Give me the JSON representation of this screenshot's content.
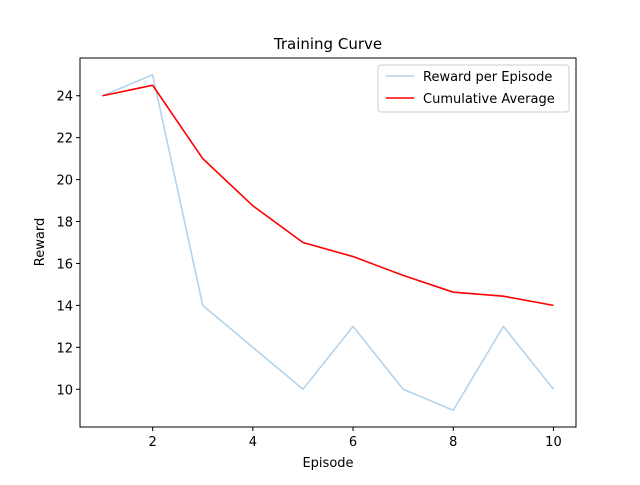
{
  "chart_data": {
    "type": "line",
    "title": "Training Curve",
    "xlabel": "Episode",
    "ylabel": "Reward",
    "xlim": [
      0.55,
      10.45
    ],
    "ylim": [
      8.2,
      25.8
    ],
    "xticks": [
      2,
      4,
      6,
      8,
      10
    ],
    "yticks": [
      10,
      12,
      14,
      16,
      18,
      20,
      22,
      24
    ],
    "grid": false,
    "legend_position": "top-right",
    "x": [
      1,
      2,
      3,
      4,
      5,
      6,
      7,
      8,
      9,
      10
    ],
    "series": [
      {
        "name": "Reward per Episode",
        "color": "#b3d4ea",
        "values": [
          24,
          25,
          14,
          12,
          10,
          13,
          10,
          9,
          13,
          10
        ]
      },
      {
        "name": "Cumulative Average",
        "color": "#ff0000",
        "values": [
          24.0,
          24.5,
          21.0,
          18.75,
          17.0,
          16.33,
          15.43,
          14.63,
          14.44,
          14.0
        ]
      }
    ]
  }
}
